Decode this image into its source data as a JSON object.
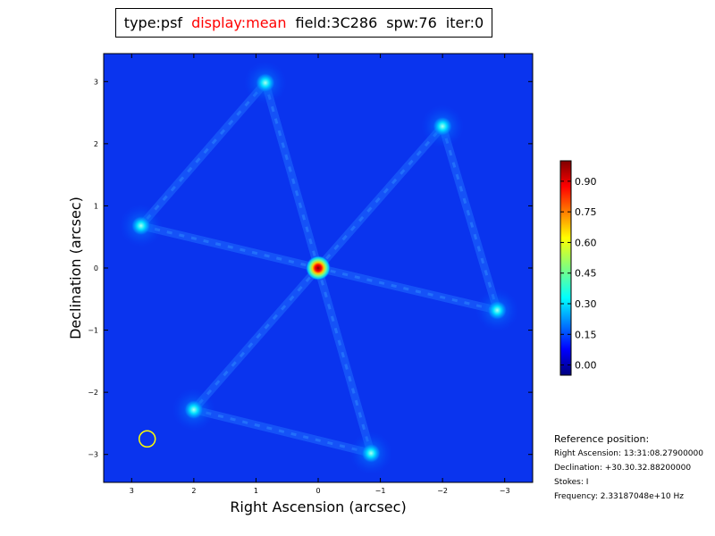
{
  "title": {
    "type": "type:psf",
    "display": "display:mean",
    "field": "field:3C286",
    "spw": "spw:76",
    "iter": "iter:0",
    "display_color": "#ff0000"
  },
  "reference": {
    "heading": "Reference position:",
    "ra": "Right Ascension: 13:31:08.27900000",
    "dec": "Declination: +30.30.32.88200000",
    "stokes": "Stokes: I",
    "freq": "Frequency: 2.33187048e+10 Hz"
  },
  "chart_data": {
    "type": "heatmap",
    "xlabel": "Right Ascension (arcsec)",
    "ylabel": "Declination (arcsec)",
    "xlim": [
      3.45,
      -3.45
    ],
    "ylim": [
      -3.45,
      3.45
    ],
    "x_ticks": [
      3,
      2,
      1,
      0,
      -1,
      -2,
      -3
    ],
    "x_tick_labels": [
      "3",
      "2",
      "1",
      "0",
      "−1",
      "−2",
      "−3"
    ],
    "y_ticks": [
      3,
      2,
      1,
      0,
      -1,
      -2,
      -3
    ],
    "y_tick_labels": [
      "3",
      "2",
      "1",
      "0",
      "−1",
      "−2",
      "−3"
    ],
    "colorbar": {
      "range": [
        -0.05,
        1.0
      ],
      "ticks": [
        0.9,
        0.75,
        0.6,
        0.45,
        0.3,
        0.15,
        0.0
      ],
      "tick_labels": [
        "0.90",
        "0.75",
        "0.60",
        "0.45",
        "0.30",
        "0.15",
        "0.00"
      ],
      "colormap": "jet"
    },
    "peaks": [
      {
        "x": 0.0,
        "y": 0.0,
        "value": 1.0
      },
      {
        "x": 2.85,
        "y": 0.68,
        "value": 0.3
      },
      {
        "x": -2.88,
        "y": -0.68,
        "value": 0.3
      },
      {
        "x": 0.85,
        "y": 2.98,
        "value": 0.25
      },
      {
        "x": -2.0,
        "y": 2.28,
        "value": 0.25
      },
      {
        "x": 2.0,
        "y": -2.28,
        "value": 0.25
      },
      {
        "x": -0.85,
        "y": -2.98,
        "value": 0.25
      }
    ],
    "beam_marker": {
      "x": 2.75,
      "y": -2.75,
      "color": "#ffff00"
    }
  }
}
